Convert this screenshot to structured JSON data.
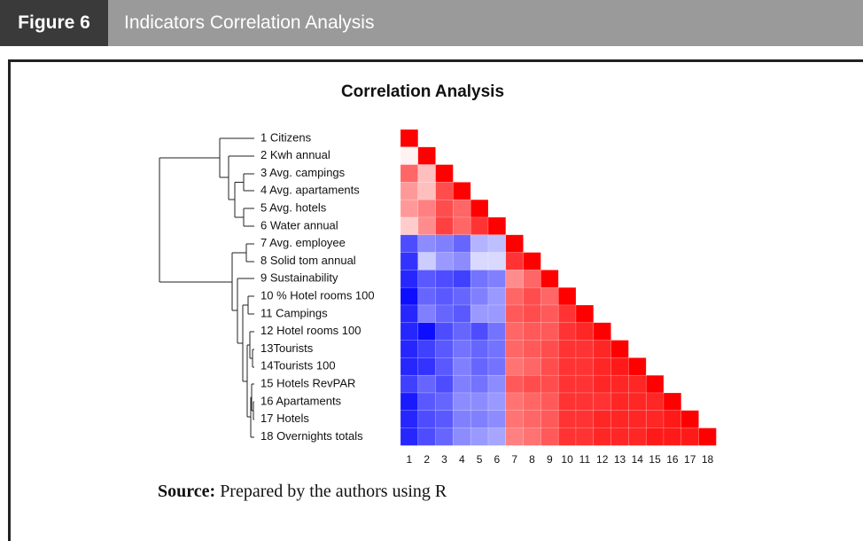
{
  "header": {
    "label": "Figure 6",
    "title": "Indicators Correlation Analysis"
  },
  "chart_data": {
    "type": "heatmap",
    "title": "Correlation Analysis",
    "row_labels": [
      "1 Citizens",
      "2 Kwh annual",
      "3 Avg. campings",
      "4 Avg. apartaments",
      "5 Avg. hotels",
      "6 Water annual",
      "7 Avg. employee",
      "8 Solid tom annual",
      "9 Sustainability",
      "10 % Hotel rooms 100",
      "11 Campings",
      "12 Hotel rooms 100",
      "13Tourists",
      "14Tourists 100",
      "15 Hotels RevPAR",
      "16 Apartaments",
      "17 Hotels",
      "18 Overnights totals"
    ],
    "col_labels": [
      "1",
      "2",
      "3",
      "4",
      "5",
      "6",
      "7",
      "8",
      "9",
      "10",
      "11",
      "12",
      "13",
      "14",
      "15",
      "16",
      "17",
      "18"
    ],
    "values": [
      [
        1
      ],
      [
        0.05,
        1
      ],
      [
        0.6,
        0.25,
        1
      ],
      [
        0.4,
        0.25,
        0.7,
        1
      ],
      [
        0.4,
        0.5,
        0.7,
        0.6,
        1
      ],
      [
        0.2,
        0.45,
        0.75,
        0.6,
        0.8,
        1
      ],
      [
        -0.7,
        -0.45,
        -0.5,
        -0.6,
        -0.3,
        -0.25,
        1
      ],
      [
        -0.8,
        -0.2,
        -0.4,
        -0.45,
        -0.15,
        -0.15,
        0.8,
        1
      ],
      [
        -0.85,
        -0.65,
        -0.7,
        -0.75,
        -0.55,
        -0.5,
        0.45,
        0.6,
        1
      ],
      [
        -0.95,
        -0.6,
        -0.65,
        -0.6,
        -0.5,
        -0.4,
        0.6,
        0.7,
        0.6,
        1
      ],
      [
        -0.85,
        -0.5,
        -0.6,
        -0.65,
        -0.4,
        -0.4,
        0.65,
        0.7,
        0.65,
        0.8,
        1
      ],
      [
        -0.85,
        -0.95,
        -0.7,
        -0.6,
        -0.7,
        -0.55,
        0.6,
        0.65,
        0.65,
        0.8,
        0.85,
        1
      ],
      [
        -0.85,
        -0.75,
        -0.65,
        -0.55,
        -0.6,
        -0.55,
        0.6,
        0.65,
        0.7,
        0.8,
        0.8,
        0.85,
        1
      ],
      [
        -0.85,
        -0.8,
        -0.65,
        -0.5,
        -0.6,
        -0.55,
        0.55,
        0.6,
        0.7,
        0.8,
        0.8,
        0.85,
        0.9,
        1
      ],
      [
        -0.75,
        -0.6,
        -0.7,
        -0.5,
        -0.55,
        -0.45,
        0.65,
        0.7,
        0.7,
        0.8,
        0.8,
        0.85,
        0.85,
        0.85,
        1
      ],
      [
        -0.9,
        -0.65,
        -0.6,
        -0.45,
        -0.45,
        -0.4,
        0.55,
        0.6,
        0.65,
        0.8,
        0.8,
        0.8,
        0.85,
        0.85,
        0.85,
        1
      ],
      [
        -0.85,
        -0.7,
        -0.65,
        -0.5,
        -0.5,
        -0.45,
        0.55,
        0.6,
        0.65,
        0.8,
        0.8,
        0.85,
        0.85,
        0.85,
        0.85,
        0.9,
        1
      ],
      [
        -0.85,
        -0.7,
        -0.6,
        -0.45,
        -0.4,
        -0.35,
        0.5,
        0.55,
        0.65,
        0.8,
        0.8,
        0.85,
        0.85,
        0.85,
        0.9,
        0.9,
        0.9,
        1
      ]
    ],
    "zlim": [
      -1,
      1
    ],
    "colors": [
      "#0000ff",
      "#ffffff",
      "#ff0000"
    ]
  },
  "source": {
    "label": "Source:",
    "text": "Prepared by the authors using R"
  }
}
